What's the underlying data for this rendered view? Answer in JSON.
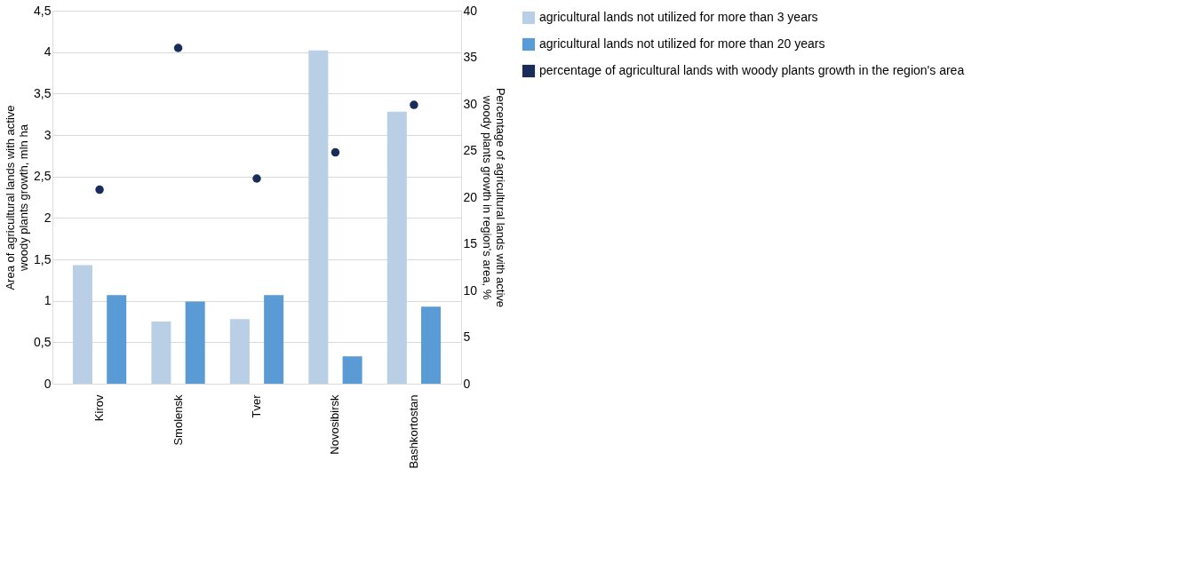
{
  "chart_data": {
    "type": "bar",
    "categories": [
      "Kirov",
      "Smolensk",
      "Tver",
      "Novosibirsk",
      "Bashkortostan"
    ],
    "ylabel": "Area of agricultural lands with active woody plants growth, mln ha",
    "y2label": "Percentage of agricultural lands with active woody plants growth in region's area, %",
    "series": [
      {
        "name": "agricultural lands not utilized for more than 3 years",
        "color": "#b8cfe6",
        "values": [
          1.43,
          0.75,
          0.78,
          4.02,
          3.28
        ]
      },
      {
        "name": "agricultural lands not utilized for more than 20 years",
        "color": "#5b9bd5",
        "values": [
          1.07,
          0.99,
          1.07,
          0.33,
          0.93
        ]
      },
      {
        "name": "percentage of agricultural lands with woody plants growth in the region's area",
        "color": "#1a2d5a",
        "type": "scatter",
        "axis": "y2",
        "marker": "circle",
        "values": [
          20.8,
          36.0,
          22.0,
          24.8,
          29.9
        ]
      }
    ],
    "ylim": [
      0,
      4.5
    ],
    "yticks": [
      0,
      {
        "value": 0.5,
        "label": "0,5"
      },
      1,
      {
        "value": 1.5,
        "label": "1,5"
      },
      2,
      {
        "value": 2.5,
        "label": "2,5"
      },
      3,
      {
        "value": 3.5,
        "label": "3,5"
      },
      4,
      {
        "value": 4.5,
        "label": "4,5"
      }
    ],
    "y2lim": [
      0,
      40
    ],
    "y2ticks": [
      0,
      5,
      10,
      15,
      20,
      25,
      30,
      35,
      40
    ],
    "grid": "y",
    "legend": "right"
  }
}
